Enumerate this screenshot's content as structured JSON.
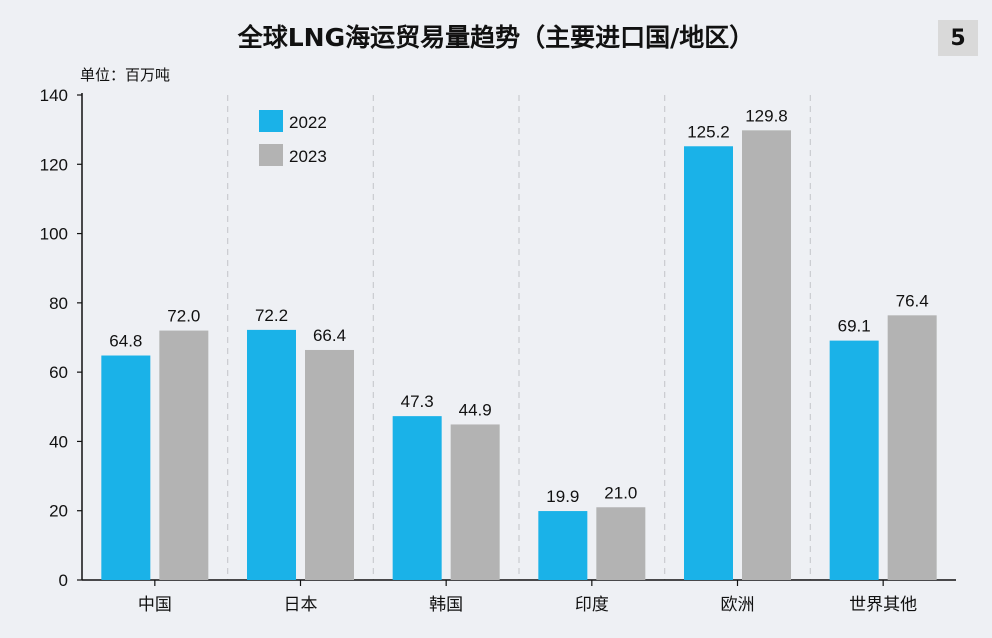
{
  "chart_data": {
    "type": "bar",
    "title": "全球LNG海运贸易量趋势（主要进口国/地区）",
    "unit_label": "单位：百万吨",
    "page_number": "5",
    "categories": [
      "中国",
      "日本",
      "韩国",
      "印度",
      "欧洲",
      "世界其他"
    ],
    "series": [
      {
        "name": "2022",
        "color": "#1ab2e8",
        "values": [
          64.8,
          72.2,
          47.3,
          19.9,
          125.2,
          69.1
        ]
      },
      {
        "name": "2023",
        "color": "#b3b3b3",
        "values": [
          72.0,
          66.4,
          44.9,
          21.0,
          129.8,
          76.4
        ]
      }
    ],
    "ylim": [
      0,
      140
    ],
    "yticks": [
      0,
      20,
      40,
      60,
      80,
      100,
      120,
      140
    ],
    "legend_position": "top-left",
    "gridlines": "vertical dashed separators"
  }
}
